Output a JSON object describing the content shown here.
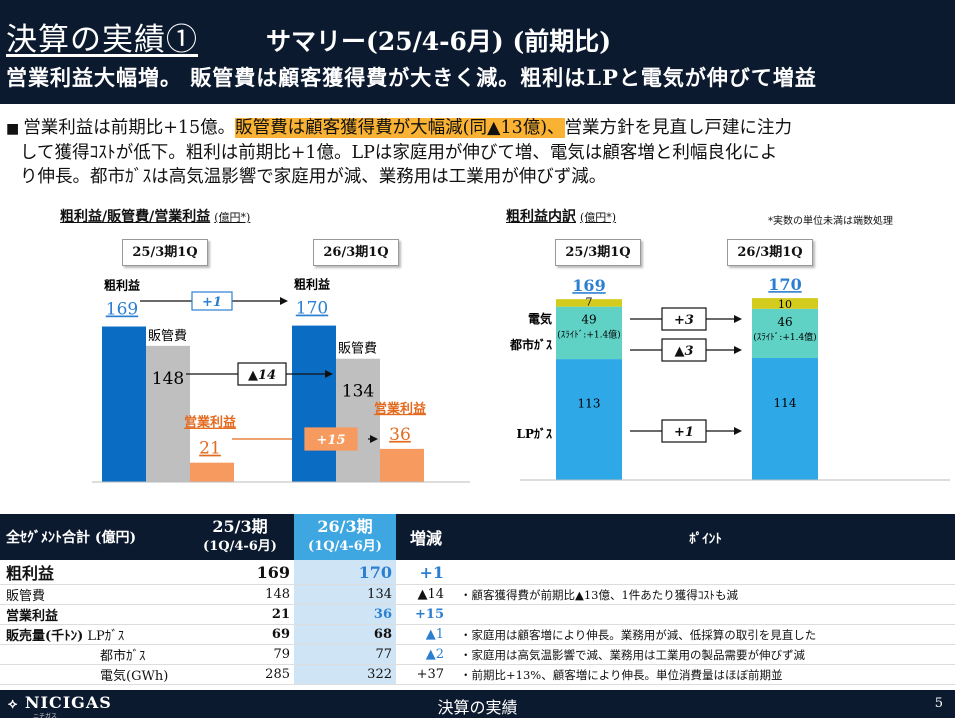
{
  "header": {
    "title": "決算の実績①",
    "subtitle": "サマリー(25/4-6月) (前期比)",
    "headline": "営業利益大幅増。 販管費は顧客獲得費が大きく減。粗利はLPと電気が伸びて増益"
  },
  "summary": {
    "bullet": "■",
    "part1": "営業利益は前期比+15億。",
    "highlight": "販管費は顧客獲得費が大幅減(同▲13億)、",
    "part2": "営業方針を見直し戸建に注力",
    "line2": "して獲得ｺｽﾄが低下。粗利は前期比+1億。LPは家庭用が伸びて増、電気は顧客増と利幅良化によ",
    "line3": "り伸長。都市ｶﾞｽは高気温影響で家庭用が減、業務用は工業用が伸びず減。"
  },
  "left_chart": {
    "title": "粗利益/販管費/営業利益",
    "unit": "(億円*)",
    "periods": [
      "25/3期1Q",
      "26/3期1Q"
    ],
    "gross_label": "粗利益",
    "sga_label": "販管費",
    "op_label": "営業利益",
    "gross_change": "+1",
    "sga_change": "▲14",
    "op_change": "+15"
  },
  "right_chart": {
    "title": "粗利益内訳",
    "unit": "(億円*)",
    "note": "*実数の単位未満は端数処理",
    "periods": [
      "25/3期1Q",
      "26/3期1Q"
    ],
    "totals": [
      "169",
      "170"
    ],
    "categories": [
      "電気",
      "都市ｶﾞｽ",
      "LPｶﾞｽ"
    ],
    "changes": [
      "+3",
      "▲3",
      "+1"
    ],
    "slide_note": "(ｽﾗｲﾄﾞ:+1.4億)"
  },
  "chart_data": [
    {
      "type": "bar",
      "title": "粗利益/販管費/営業利益",
      "categories": [
        "25/3期1Q",
        "26/3期1Q"
      ],
      "series": [
        {
          "name": "粗利益",
          "values": [
            169,
            170
          ]
        },
        {
          "name": "販管費",
          "values": [
            148,
            134
          ]
        },
        {
          "name": "営業利益",
          "values": [
            21,
            36
          ]
        }
      ],
      "colors": {
        "gross": "#0b6cc4",
        "sga": "#bfbfbf",
        "op": "#f79a5f"
      }
    },
    {
      "type": "bar",
      "title": "粗利益内訳",
      "categories": [
        "25/3期1Q",
        "26/3期1Q"
      ],
      "series": [
        {
          "name": "LPｶﾞｽ",
          "values": [
            113,
            114
          ]
        },
        {
          "name": "都市ｶﾞｽ",
          "values": [
            49,
            46
          ]
        },
        {
          "name": "電気",
          "values": [
            7,
            10
          ]
        }
      ],
      "totals": [
        169,
        170
      ],
      "colors": {
        "lp": "#2fa8e8",
        "city": "#5fd1c5",
        "elec": "#d4cc1c"
      }
    }
  ],
  "table": {
    "headers": [
      "全ｾｸﾞﾒﾝﾄ合計 (億円)",
      "25/3期",
      "(1Q/4-6月)",
      "26/3期",
      "(1Q/4-6月)",
      "増減",
      "ﾎﾟｲﾝﾄ"
    ],
    "rows": [
      {
        "label": "粗利益",
        "sub": "",
        "v25": "169",
        "v26": "170",
        "chg": "+1",
        "point": ""
      },
      {
        "label": "販管費",
        "sub": "",
        "v25": "148",
        "v26": "134",
        "chg": "▲14",
        "point": "・顧客獲得費が前期比▲13億、1件あたり獲得ｺｽﾄも減"
      },
      {
        "label": "営業利益",
        "sub": "",
        "v25": "21",
        "v26": "36",
        "chg": "+15",
        "point": ""
      },
      {
        "label": "販売量(千ﾄﾝ)",
        "sub": "LPｶﾞｽ",
        "v25": "69",
        "v26": "68",
        "chg": "▲1",
        "point": "・家庭用は顧客増により伸長。業務用が減、低採算の取引を見直した"
      },
      {
        "label": "",
        "sub": "都市ｶﾞｽ",
        "v25": "79",
        "v26": "77",
        "chg": "▲2",
        "point": "・家庭用は高気温影響で減、業務用は工業用の製品需要が伸びず減"
      },
      {
        "label": "",
        "sub": "電気(GWh)",
        "v25": "285",
        "v26": "322",
        "chg": "+37",
        "point": "・前期比+13%、顧客増により伸長。単位消費量はほぼ前期並"
      }
    ]
  },
  "footer": {
    "logo": "NICIGAS",
    "logo_sub": "ニチガス",
    "center": "決算の実績",
    "page": "5"
  }
}
